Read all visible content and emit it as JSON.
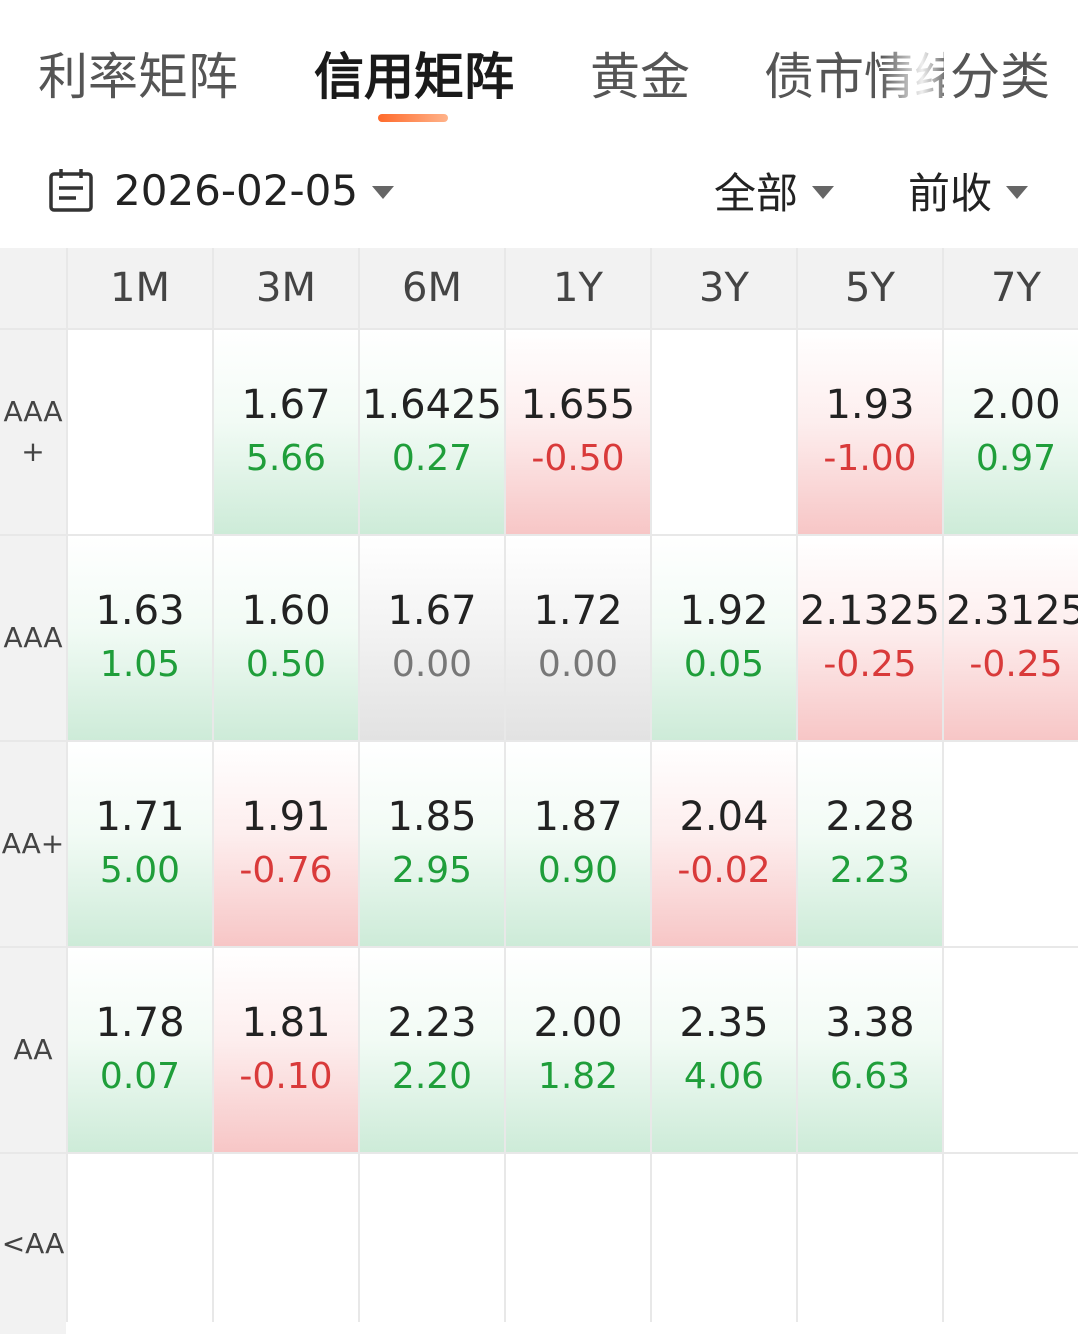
{
  "tabs": [
    {
      "label": "利率矩阵",
      "active": false
    },
    {
      "label": "信用矩阵",
      "active": true
    },
    {
      "label": "黄金",
      "active": false
    },
    {
      "label": "债市情绪",
      "active": false
    },
    {
      "label": "分类",
      "active": false
    }
  ],
  "filters": {
    "date": "2026-02-05",
    "scope": "全部",
    "compare": "前收"
  },
  "colors": {
    "up": "#1f9e3a",
    "down": "#d93a3a",
    "flat": "#777777",
    "accent": "#ff6a2b"
  },
  "table": {
    "columns": [
      "1M",
      "3M",
      "6M",
      "1Y",
      "3Y",
      "5Y",
      "7Y"
    ],
    "rows": [
      {
        "label": "AAA\n+",
        "cells": [
          {
            "value": "",
            "change": "",
            "trend": "none"
          },
          {
            "value": "1.67",
            "change": "5.66",
            "trend": "up"
          },
          {
            "value": "1.6425",
            "change": "0.27",
            "trend": "up"
          },
          {
            "value": "1.655",
            "change": "-0.50",
            "trend": "down"
          },
          {
            "value": "",
            "change": "",
            "trend": "none"
          },
          {
            "value": "1.93",
            "change": "-1.00",
            "trend": "down"
          },
          {
            "value": "2.00",
            "change": "0.97",
            "trend": "up"
          }
        ]
      },
      {
        "label": "AAA",
        "cells": [
          {
            "value": "1.63",
            "change": "1.05",
            "trend": "up"
          },
          {
            "value": "1.60",
            "change": "0.50",
            "trend": "up"
          },
          {
            "value": "1.67",
            "change": "0.00",
            "trend": "flat"
          },
          {
            "value": "1.72",
            "change": "0.00",
            "trend": "flat"
          },
          {
            "value": "1.92",
            "change": "0.05",
            "trend": "up"
          },
          {
            "value": "2.1325",
            "change": "-0.25",
            "trend": "down"
          },
          {
            "value": "2.3125",
            "change": "-0.25",
            "trend": "down"
          }
        ]
      },
      {
        "label": "AA+",
        "cells": [
          {
            "value": "1.71",
            "change": "5.00",
            "trend": "up"
          },
          {
            "value": "1.91",
            "change": "-0.76",
            "trend": "down"
          },
          {
            "value": "1.85",
            "change": "2.95",
            "trend": "up"
          },
          {
            "value": "1.87",
            "change": "0.90",
            "trend": "up"
          },
          {
            "value": "2.04",
            "change": "-0.02",
            "trend": "down"
          },
          {
            "value": "2.28",
            "change": "2.23",
            "trend": "up"
          },
          {
            "value": "",
            "change": "",
            "trend": "none"
          }
        ]
      },
      {
        "label": "AA",
        "cells": [
          {
            "value": "1.78",
            "change": "0.07",
            "trend": "up"
          },
          {
            "value": "1.81",
            "change": "-0.10",
            "trend": "down"
          },
          {
            "value": "2.23",
            "change": "2.20",
            "trend": "up"
          },
          {
            "value": "2.00",
            "change": "1.82",
            "trend": "up"
          },
          {
            "value": "2.35",
            "change": "4.06",
            "trend": "up"
          },
          {
            "value": "3.38",
            "change": "6.63",
            "trend": "up"
          },
          {
            "value": "",
            "change": "",
            "trend": "none"
          }
        ]
      },
      {
        "label": "<AA",
        "cells": [
          {
            "value": "",
            "change": "",
            "trend": "none"
          },
          {
            "value": "",
            "change": "",
            "trend": "none"
          },
          {
            "value": "",
            "change": "",
            "trend": "none"
          },
          {
            "value": "",
            "change": "",
            "trend": "none"
          },
          {
            "value": "",
            "change": "",
            "trend": "none"
          },
          {
            "value": "",
            "change": "",
            "trend": "none"
          },
          {
            "value": "",
            "change": "",
            "trend": "none"
          }
        ]
      }
    ]
  }
}
